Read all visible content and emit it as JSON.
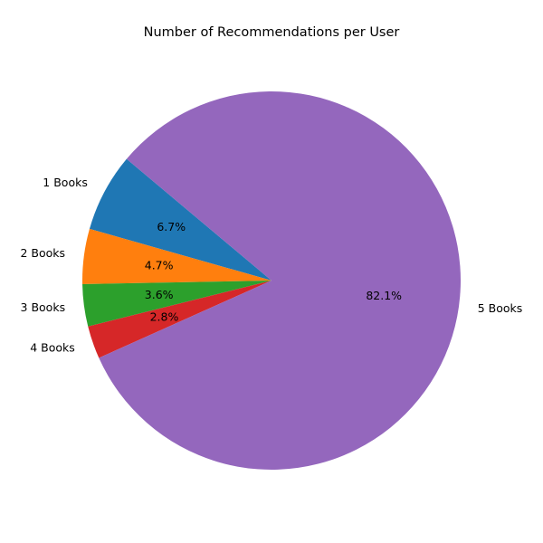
{
  "chart_data": {
    "type": "pie",
    "title": "Number of Recommendations per User",
    "categories": [
      "1 Books",
      "2 Books",
      "3 Books",
      "4 Books",
      "5 Books"
    ],
    "values": [
      6.7,
      4.7,
      3.6,
      2.8,
      82.1
    ],
    "value_labels": [
      "6.7%",
      "4.7%",
      "3.6%",
      "2.8%",
      "82.1%"
    ],
    "colors": [
      "#1f77b4",
      "#ff7f0e",
      "#2ca02c",
      "#d62728",
      "#9467bd"
    ],
    "start_angle_deg": 140,
    "direction": "counterclockwise",
    "legend": "none"
  }
}
